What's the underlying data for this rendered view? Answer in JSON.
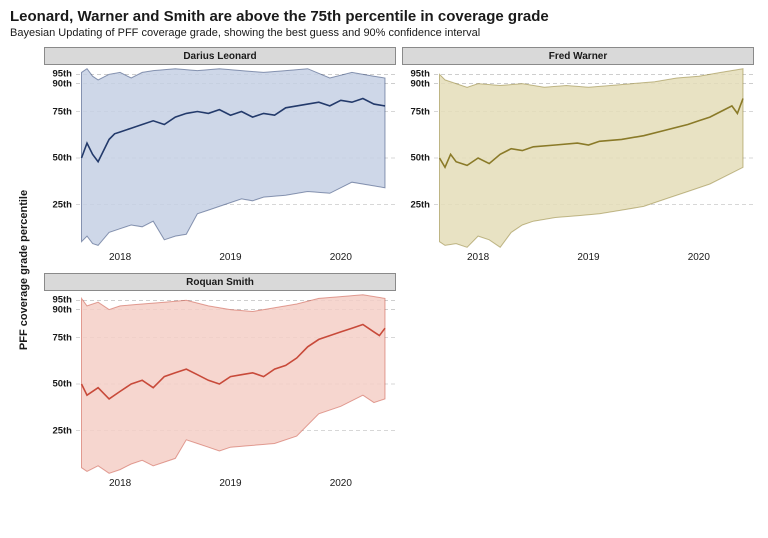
{
  "title": "Leonard, Warner and Smith are above the 75th percentile in coverage grade",
  "subtitle": "Bayesian Updating of PFF coverage grade, showing the best guess and 90% confidence interval",
  "ylabel": "PFF coverage grade percentile",
  "background_color": "#ffffff",
  "strip_bg": "#d9d9d9",
  "strip_border": "#8a8a8a",
  "gridline_color": "#b0b0b0",
  "title_fontsize": 15,
  "subtitle_fontsize": 11,
  "ylabel_fontsize": 11,
  "tick_fontsize": 10,
  "y_min": 0,
  "y_max": 100,
  "y_ticks": [
    {
      "value": 25,
      "label": "25th"
    },
    {
      "value": 50,
      "label": "50th"
    },
    {
      "value": 75,
      "label": "75th"
    },
    {
      "value": 90,
      "label": "90th"
    },
    {
      "value": 95,
      "label": "95th"
    }
  ],
  "x_min": 2017.6,
  "x_max": 2020.5,
  "x_ticks": [
    {
      "value": 2018,
      "label": "2018"
    },
    {
      "value": 2019,
      "label": "2019"
    },
    {
      "value": 2020,
      "label": "2020"
    }
  ],
  "panels": [
    {
      "title": "Darius Leonard",
      "line_color": "#233a6b",
      "band_color": "#c6d0e4",
      "line_width": 1.6,
      "median": [
        [
          2017.65,
          50
        ],
        [
          2017.7,
          58
        ],
        [
          2017.75,
          52
        ],
        [
          2017.8,
          48
        ],
        [
          2017.9,
          60
        ],
        [
          2017.95,
          63
        ],
        [
          2018.0,
          64
        ],
        [
          2018.1,
          66
        ],
        [
          2018.2,
          68
        ],
        [
          2018.3,
          70
        ],
        [
          2018.4,
          68
        ],
        [
          2018.5,
          72
        ],
        [
          2018.6,
          74
        ],
        [
          2018.7,
          75
        ],
        [
          2018.8,
          74
        ],
        [
          2018.9,
          76
        ],
        [
          2019.0,
          73
        ],
        [
          2019.1,
          75
        ],
        [
          2019.2,
          72
        ],
        [
          2019.3,
          74
        ],
        [
          2019.4,
          73
        ],
        [
          2019.5,
          77
        ],
        [
          2019.6,
          78
        ],
        [
          2019.7,
          79
        ],
        [
          2019.8,
          80
        ],
        [
          2019.9,
          78
        ],
        [
          2020.0,
          81
        ],
        [
          2020.1,
          80
        ],
        [
          2020.2,
          82
        ],
        [
          2020.3,
          79
        ],
        [
          2020.4,
          78
        ]
      ],
      "upper": [
        [
          2017.65,
          96
        ],
        [
          2017.7,
          98
        ],
        [
          2017.75,
          94
        ],
        [
          2017.8,
          92
        ],
        [
          2017.9,
          95
        ],
        [
          2018.0,
          96
        ],
        [
          2018.1,
          93
        ],
        [
          2018.2,
          96
        ],
        [
          2018.3,
          97
        ],
        [
          2018.5,
          98
        ],
        [
          2018.7,
          97
        ],
        [
          2018.9,
          98
        ],
        [
          2019.1,
          97
        ],
        [
          2019.3,
          96
        ],
        [
          2019.5,
          97
        ],
        [
          2019.7,
          98
        ],
        [
          2019.9,
          93
        ],
        [
          2020.1,
          96
        ],
        [
          2020.3,
          94
        ],
        [
          2020.4,
          93
        ]
      ],
      "lower": [
        [
          2017.65,
          5
        ],
        [
          2017.7,
          8
        ],
        [
          2017.75,
          4
        ],
        [
          2017.8,
          3
        ],
        [
          2017.9,
          10
        ],
        [
          2018.0,
          12
        ],
        [
          2018.1,
          14
        ],
        [
          2018.2,
          13
        ],
        [
          2018.3,
          16
        ],
        [
          2018.4,
          6
        ],
        [
          2018.5,
          8
        ],
        [
          2018.6,
          9
        ],
        [
          2018.7,
          20
        ],
        [
          2018.8,
          22
        ],
        [
          2018.9,
          24
        ],
        [
          2019.0,
          26
        ],
        [
          2019.1,
          28
        ],
        [
          2019.2,
          27
        ],
        [
          2019.3,
          29
        ],
        [
          2019.5,
          30
        ],
        [
          2019.7,
          32
        ],
        [
          2019.9,
          31
        ],
        [
          2020.1,
          37
        ],
        [
          2020.3,
          35
        ],
        [
          2020.4,
          34
        ]
      ]
    },
    {
      "title": "Fred Warner",
      "line_color": "#8a7a28",
      "band_color": "#e4ddb8",
      "line_width": 1.6,
      "median": [
        [
          2017.65,
          50
        ],
        [
          2017.7,
          45
        ],
        [
          2017.75,
          52
        ],
        [
          2017.8,
          48
        ],
        [
          2017.9,
          46
        ],
        [
          2018.0,
          50
        ],
        [
          2018.1,
          47
        ],
        [
          2018.2,
          52
        ],
        [
          2018.3,
          55
        ],
        [
          2018.4,
          54
        ],
        [
          2018.5,
          56
        ],
        [
          2018.7,
          57
        ],
        [
          2018.9,
          58
        ],
        [
          2019.0,
          57
        ],
        [
          2019.1,
          59
        ],
        [
          2019.3,
          60
        ],
        [
          2019.5,
          62
        ],
        [
          2019.7,
          65
        ],
        [
          2019.9,
          68
        ],
        [
          2020.0,
          70
        ],
        [
          2020.1,
          72
        ],
        [
          2020.2,
          75
        ],
        [
          2020.3,
          78
        ],
        [
          2020.35,
          74
        ],
        [
          2020.4,
          82
        ]
      ],
      "upper": [
        [
          2017.65,
          95
        ],
        [
          2017.7,
          92
        ],
        [
          2017.8,
          90
        ],
        [
          2017.9,
          88
        ],
        [
          2018.0,
          90
        ],
        [
          2018.2,
          89
        ],
        [
          2018.4,
          90
        ],
        [
          2018.6,
          88
        ],
        [
          2018.8,
          89
        ],
        [
          2019.0,
          88
        ],
        [
          2019.2,
          89
        ],
        [
          2019.4,
          90
        ],
        [
          2019.6,
          91
        ],
        [
          2019.8,
          93
        ],
        [
          2020.0,
          94
        ],
        [
          2020.2,
          96
        ],
        [
          2020.4,
          98
        ]
      ],
      "lower": [
        [
          2017.65,
          5
        ],
        [
          2017.7,
          3
        ],
        [
          2017.8,
          4
        ],
        [
          2017.9,
          2
        ],
        [
          2018.0,
          8
        ],
        [
          2018.1,
          6
        ],
        [
          2018.2,
          2
        ],
        [
          2018.3,
          10
        ],
        [
          2018.4,
          14
        ],
        [
          2018.5,
          16
        ],
        [
          2018.7,
          18
        ],
        [
          2018.9,
          19
        ],
        [
          2019.1,
          20
        ],
        [
          2019.3,
          22
        ],
        [
          2019.5,
          24
        ],
        [
          2019.7,
          28
        ],
        [
          2019.9,
          32
        ],
        [
          2020.1,
          36
        ],
        [
          2020.3,
          42
        ],
        [
          2020.4,
          45
        ]
      ]
    },
    {
      "title": "Roquan Smith",
      "line_color": "#c84a3a",
      "band_color": "#f4cfc7",
      "line_width": 1.6,
      "median": [
        [
          2017.65,
          50
        ],
        [
          2017.7,
          44
        ],
        [
          2017.8,
          48
        ],
        [
          2017.9,
          42
        ],
        [
          2018.0,
          46
        ],
        [
          2018.1,
          50
        ],
        [
          2018.2,
          52
        ],
        [
          2018.3,
          48
        ],
        [
          2018.4,
          54
        ],
        [
          2018.5,
          56
        ],
        [
          2018.6,
          58
        ],
        [
          2018.7,
          55
        ],
        [
          2018.8,
          52
        ],
        [
          2018.9,
          50
        ],
        [
          2019.0,
          54
        ],
        [
          2019.1,
          55
        ],
        [
          2019.2,
          56
        ],
        [
          2019.3,
          54
        ],
        [
          2019.4,
          58
        ],
        [
          2019.5,
          60
        ],
        [
          2019.6,
          64
        ],
        [
          2019.7,
          70
        ],
        [
          2019.8,
          74
        ],
        [
          2019.9,
          76
        ],
        [
          2020.0,
          78
        ],
        [
          2020.1,
          80
        ],
        [
          2020.2,
          82
        ],
        [
          2020.3,
          78
        ],
        [
          2020.35,
          76
        ],
        [
          2020.4,
          80
        ]
      ],
      "upper": [
        [
          2017.65,
          96
        ],
        [
          2017.7,
          92
        ],
        [
          2017.8,
          94
        ],
        [
          2017.9,
          90
        ],
        [
          2018.0,
          92
        ],
        [
          2018.2,
          93
        ],
        [
          2018.4,
          94
        ],
        [
          2018.6,
          95
        ],
        [
          2018.8,
          92
        ],
        [
          2019.0,
          90
        ],
        [
          2019.2,
          89
        ],
        [
          2019.4,
          91
        ],
        [
          2019.6,
          93
        ],
        [
          2019.8,
          96
        ],
        [
          2020.0,
          97
        ],
        [
          2020.2,
          98
        ],
        [
          2020.4,
          96
        ]
      ],
      "lower": [
        [
          2017.65,
          5
        ],
        [
          2017.7,
          3
        ],
        [
          2017.8,
          6
        ],
        [
          2017.9,
          2
        ],
        [
          2018.0,
          4
        ],
        [
          2018.1,
          7
        ],
        [
          2018.2,
          9
        ],
        [
          2018.3,
          6
        ],
        [
          2018.4,
          8
        ],
        [
          2018.5,
          10
        ],
        [
          2018.6,
          20
        ],
        [
          2018.7,
          18
        ],
        [
          2018.8,
          16
        ],
        [
          2018.9,
          14
        ],
        [
          2019.0,
          16
        ],
        [
          2019.2,
          17
        ],
        [
          2019.4,
          18
        ],
        [
          2019.6,
          22
        ],
        [
          2019.8,
          34
        ],
        [
          2020.0,
          38
        ],
        [
          2020.2,
          44
        ],
        [
          2020.3,
          40
        ],
        [
          2020.4,
          42
        ]
      ]
    }
  ]
}
